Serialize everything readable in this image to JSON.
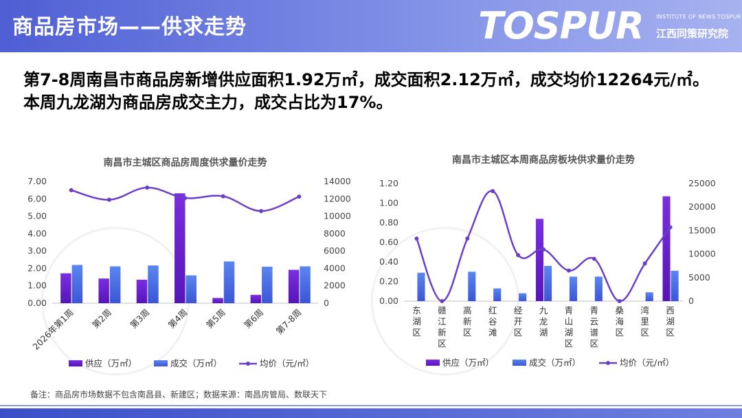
{
  "header": {
    "title": "商品房市场——供求走势",
    "brand": "TOSPUR",
    "brand_sub_en": "INSTITUTE OF NEWS TOSPUR",
    "brand_sub_cn": "江西同策研究院"
  },
  "headline": "第7-8周南昌市商品房新增供应面积1.92万㎡，成交面积2.12万㎡，成交均价12264元/㎡。本周九龙湖为商品房成交主力，成交占比为17%。",
  "footnote": "备注：商品房市场数据不包含南昌县、新建区；数据来源：南昌房管局、数联天下",
  "colors": {
    "supply": "#6a1fd0",
    "deal": "#4a6fe3",
    "price": "#6a3fc8"
  },
  "chart_data": [
    {
      "type": "bar",
      "title": "南昌市主城区商品房周度供求量价走势",
      "categories": [
        "2026年第1周",
        "第2周",
        "第3周",
        "第4周",
        "第5周",
        "第6周",
        "第7-8周"
      ],
      "series": [
        {
          "name": "供应（万㎡）",
          "type": "bar",
          "axis": "left",
          "values": [
            1.72,
            1.42,
            1.35,
            6.32,
            0.3,
            0.48,
            1.92
          ]
        },
        {
          "name": "成交（万㎡）",
          "type": "bar",
          "axis": "left",
          "values": [
            2.2,
            2.12,
            2.17,
            1.6,
            2.4,
            2.1,
            2.12
          ]
        },
        {
          "name": "均价（元/㎡）",
          "type": "line",
          "axis": "right",
          "values": [
            13000,
            11900,
            13300,
            12100,
            12300,
            10600,
            12264
          ]
        }
      ],
      "ylim_left": [
        0,
        7
      ],
      "yticks_left": [
        "0.00",
        "1.00",
        "2.00",
        "3.00",
        "4.00",
        "5.00",
        "6.00",
        "7.00"
      ],
      "ylim_right": [
        0,
        14000
      ],
      "yticks_right": [
        "0",
        "2000",
        "4000",
        "6000",
        "8000",
        "10000",
        "12000",
        "14000"
      ],
      "legend": "bottom"
    },
    {
      "type": "bar",
      "title": "南昌市主城区本周商品房板块供求量价走势",
      "categories": [
        "东湖区",
        "赣江新区",
        "高新区",
        "红谷滩",
        "经开区",
        "九龙湖",
        "青山湖区",
        "青云谱区",
        "桑海区",
        "湾里区",
        "西湖区"
      ],
      "series": [
        {
          "name": "供应（万㎡）",
          "type": "bar",
          "axis": "left",
          "values": [
            0,
            0,
            0,
            0,
            0,
            0.84,
            0,
            0,
            0,
            0,
            1.07
          ]
        },
        {
          "name": "成交（万㎡）",
          "type": "bar",
          "axis": "left",
          "values": [
            0.29,
            0,
            0.3,
            0.13,
            0.08,
            0.36,
            0.25,
            0.25,
            0,
            0.09,
            0.31
          ]
        },
        {
          "name": "均价（元/㎡）",
          "type": "line",
          "axis": "right",
          "values": [
            13300,
            0,
            13300,
            23400,
            9800,
            11000,
            6500,
            9000,
            0,
            8000,
            15700
          ]
        }
      ],
      "ylim_left": [
        0,
        1.2
      ],
      "yticks_left": [
        "0.00",
        "0.20",
        "0.40",
        "0.60",
        "0.80",
        "1.00",
        "1.20"
      ],
      "ylim_right": [
        0,
        25000
      ],
      "yticks_right": [
        "0",
        "5000",
        "10000",
        "15000",
        "20000",
        "25000"
      ],
      "legend": "bottom"
    }
  ]
}
